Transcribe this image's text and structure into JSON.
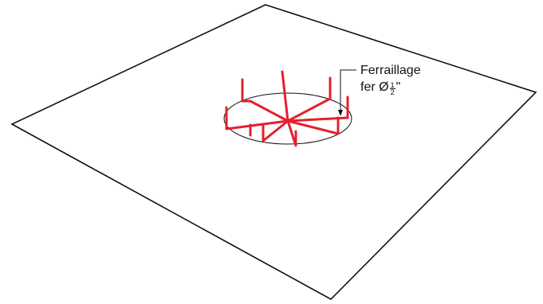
{
  "label": {
    "title": "Ferraillage",
    "prefix": "fer Ø",
    "fraction_numerator": "1",
    "fraction_denominator": "2",
    "suffix": "\""
  },
  "colors": {
    "outline": "#111111",
    "rebar": "#e3202e"
  }
}
